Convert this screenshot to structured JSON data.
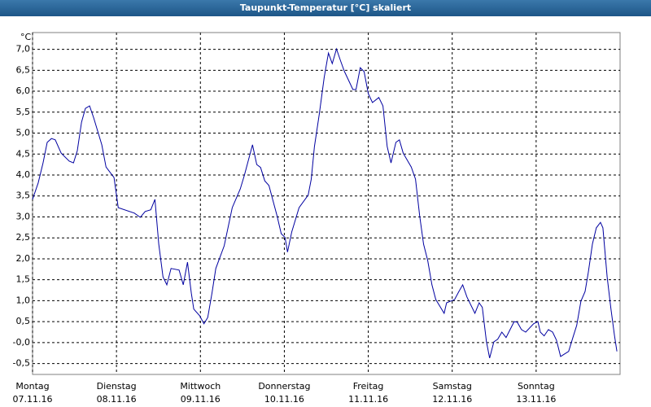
{
  "chart_data": {
    "type": "line",
    "title": "Taupunkt-Temperatur [°C] skaliert",
    "y_unit": "°C",
    "xlim": [
      0,
      168
    ],
    "ylim": [
      -0.76,
      7.4
    ],
    "xticks": [
      {
        "value": 0,
        "label": "Montag"
      },
      {
        "value": 24,
        "label": "Dienstag"
      },
      {
        "value": 48,
        "label": "Mittwoch"
      },
      {
        "value": 72,
        "label": "Donnerstag"
      },
      {
        "value": 96,
        "label": "Freitag"
      },
      {
        "value": 120,
        "label": "Samstag"
      },
      {
        "value": 144,
        "label": "Sonntag"
      }
    ],
    "xtick_dates": [
      "07.11.16",
      "08.11.16",
      "09.11.16",
      "10.11.16",
      "11.11.16",
      "12.11.16",
      "13.11.16"
    ],
    "yticks": [
      {
        "value": -0.5,
        "label": "-0,5"
      },
      {
        "value": 0,
        "label": "-0,0"
      },
      {
        "value": 0.5,
        "label": "0,5"
      },
      {
        "value": 1,
        "label": "1,0"
      },
      {
        "value": 1.5,
        "label": "1,5"
      },
      {
        "value": 2,
        "label": "2,0"
      },
      {
        "value": 2.5,
        "label": "2,5"
      },
      {
        "value": 3,
        "label": "3,0"
      },
      {
        "value": 3.5,
        "label": "3,5"
      },
      {
        "value": 4,
        "label": "4,0"
      },
      {
        "value": 4.5,
        "label": "4,5"
      },
      {
        "value": 5,
        "label": "5,0"
      },
      {
        "value": 5.5,
        "label": "5,5"
      },
      {
        "value": 6,
        "label": "6,0"
      },
      {
        "value": 6.5,
        "label": "6,5"
      },
      {
        "value": 7,
        "label": "7,0"
      }
    ],
    "grid": true,
    "x": [
      0,
      1.6,
      3.0,
      4.2,
      5.4,
      6.5,
      8.2,
      10.5,
      11.7,
      12.8,
      14.0,
      15.1,
      16.3,
      17.5,
      19.8,
      21.0,
      23.3,
      24.5,
      29.1,
      30.8,
      32.2,
      33.8,
      35.0,
      36.1,
      37.3,
      38.4,
      39.6,
      41.9,
      43.1,
      44.3,
      45.4,
      46.1,
      47.8,
      49.0,
      50.1,
      51.3,
      52.4,
      54.8,
      57.1,
      59.4,
      60.6,
      62.9,
      64.1,
      65.2,
      66.4,
      67.6,
      69.9,
      71.1,
      72.2,
      72.9,
      74.1,
      76.2,
      78.8,
      79.7,
      80.6,
      82.0,
      83.4,
      84.6,
      85.7,
      86.9,
      88.1,
      89.2,
      91.6,
      92.5,
      93.7,
      94.8,
      96.0,
      97.2,
      99.0,
      100.2,
      101.4,
      102.5,
      103.9,
      104.9,
      106.0,
      108.3,
      109.5,
      110.7,
      111.8,
      113.0,
      114.2,
      115.3,
      117.7,
      118.4,
      120.7,
      121.9,
      123.0,
      124.2,
      126.5,
      127.7,
      128.6,
      129.8,
      130.7,
      131.9,
      133.0,
      134.2,
      135.4,
      137.7,
      138.6,
      139.8,
      141.0,
      143.3,
      144.5,
      145.2,
      146.3,
      147.5,
      148.7,
      149.8,
      151.0,
      153.3,
      154.5,
      155.6,
      156.8,
      158.0,
      158.9,
      160.1,
      161.2,
      162.4,
      163.1,
      164.3,
      165.4,
      166.4,
      167.1
    ],
    "series": [
      {
        "color": "#0000a0",
        "values": [
          3.42,
          3.81,
          4.29,
          4.78,
          4.87,
          4.84,
          4.52,
          4.33,
          4.29,
          4.58,
          5.26,
          5.59,
          5.65,
          5.36,
          4.72,
          4.19,
          3.94,
          3.22,
          3.09,
          2.99,
          3.13,
          3.17,
          3.42,
          2.35,
          1.57,
          1.38,
          1.77,
          1.73,
          1.38,
          1.92,
          1.18,
          0.8,
          0.64,
          0.45,
          0.6,
          1.18,
          1.77,
          2.31,
          3.22,
          3.67,
          4.0,
          4.72,
          4.25,
          4.18,
          3.86,
          3.75,
          3.03,
          2.6,
          2.51,
          2.16,
          2.64,
          3.22,
          3.52,
          3.9,
          4.68,
          5.46,
          6.33,
          6.91,
          6.66,
          7.01,
          6.72,
          6.47,
          6.04,
          6.04,
          6.56,
          6.47,
          5.94,
          5.73,
          5.85,
          5.65,
          4.68,
          4.29,
          4.78,
          4.84,
          4.52,
          4.19,
          3.9,
          3.03,
          2.35,
          1.96,
          1.38,
          1.03,
          0.7,
          0.95,
          1.03,
          1.22,
          1.38,
          1.09,
          0.7,
          0.95,
          0.84,
          0.02,
          -0.37,
          0.02,
          0.08,
          0.25,
          0.12,
          0.5,
          0.49,
          0.31,
          0.25,
          0.45,
          0.5,
          0.25,
          0.16,
          0.31,
          0.25,
          0.06,
          -0.33,
          -0.21,
          0.12,
          0.41,
          0.99,
          1.22,
          1.67,
          2.35,
          2.74,
          2.87,
          2.74,
          1.57,
          0.8,
          0.17,
          -0.21
        ]
      }
    ]
  }
}
